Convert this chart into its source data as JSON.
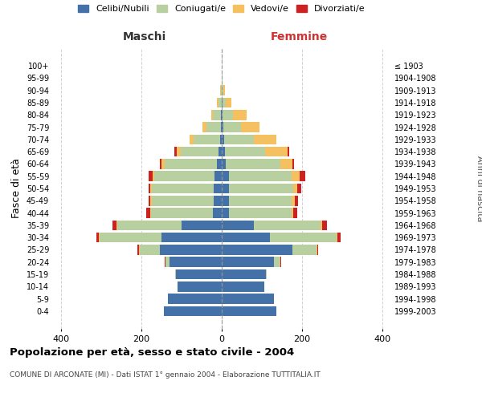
{
  "age_groups": [
    "0-4",
    "5-9",
    "10-14",
    "15-19",
    "20-24",
    "25-29",
    "30-34",
    "35-39",
    "40-44",
    "45-49",
    "50-54",
    "55-59",
    "60-64",
    "65-69",
    "70-74",
    "75-79",
    "80-84",
    "85-89",
    "90-94",
    "95-99",
    "100+"
  ],
  "birth_years": [
    "1999-2003",
    "1994-1998",
    "1989-1993",
    "1984-1988",
    "1979-1983",
    "1974-1978",
    "1969-1973",
    "1964-1968",
    "1959-1963",
    "1954-1958",
    "1949-1953",
    "1944-1948",
    "1939-1943",
    "1934-1938",
    "1929-1933",
    "1924-1928",
    "1919-1923",
    "1914-1918",
    "1909-1913",
    "1904-1908",
    "≤ 1903"
  ],
  "maschi": {
    "celibi": [
      145,
      135,
      110,
      115,
      130,
      155,
      150,
      100,
      22,
      20,
      20,
      18,
      12,
      8,
      5,
      3,
      2,
      1,
      0,
      0,
      0
    ],
    "coniugati": [
      0,
      0,
      1,
      2,
      10,
      50,
      155,
      160,
      155,
      155,
      155,
      150,
      130,
      95,
      65,
      35,
      20,
      8,
      3,
      1,
      0
    ],
    "vedovi": [
      0,
      0,
      0,
      0,
      1,
      2,
      2,
      2,
      2,
      3,
      3,
      5,
      8,
      10,
      10,
      10,
      5,
      3,
      1,
      0,
      0
    ],
    "divorziati": [
      0,
      0,
      0,
      0,
      1,
      3,
      5,
      10,
      10,
      5,
      5,
      10,
      5,
      5,
      0,
      0,
      0,
      0,
      0,
      0,
      0
    ]
  },
  "femmine": {
    "nubili": [
      135,
      130,
      105,
      110,
      130,
      175,
      120,
      80,
      18,
      18,
      18,
      18,
      10,
      8,
      5,
      3,
      2,
      1,
      0,
      0,
      0
    ],
    "coniugate": [
      0,
      0,
      1,
      2,
      15,
      60,
      165,
      165,
      155,
      155,
      160,
      155,
      135,
      100,
      75,
      45,
      25,
      8,
      3,
      1,
      0
    ],
    "vedove": [
      0,
      0,
      0,
      0,
      1,
      2,
      3,
      5,
      5,
      8,
      10,
      20,
      30,
      55,
      55,
      45,
      35,
      15,
      5,
      1,
      0
    ],
    "divorziate": [
      0,
      0,
      0,
      0,
      1,
      3,
      8,
      12,
      10,
      8,
      10,
      15,
      5,
      5,
      0,
      0,
      0,
      0,
      0,
      0,
      0
    ]
  },
  "colors": {
    "celibi_nubili": "#4472a8",
    "coniugati_e": "#b8cfa0",
    "vedovi_e": "#f5c060",
    "divorziati_e": "#cc2222"
  },
  "xlim": [
    -420,
    420
  ],
  "xticks": [
    -400,
    -200,
    0,
    200,
    400
  ],
  "xticklabels": [
    "400",
    "200",
    "0",
    "200",
    "400"
  ],
  "title": "Popolazione per età, sesso e stato civile - 2004",
  "subtitle": "COMUNE DI ARCONATE (MI) - Dati ISTAT 1° gennaio 2004 - Elaborazione TUTTITALIA.IT",
  "ylabel_left": "Fasce di età",
  "ylabel_right": "Anni di nascita",
  "label_maschi": "Maschi",
  "label_femmine": "Femmine",
  "legend_labels": [
    "Celibi/Nubili",
    "Coniugati/e",
    "Vedovi/e",
    "Divorziati/e"
  ],
  "background_color": "#ffffff",
  "grid_color": "#cccccc"
}
